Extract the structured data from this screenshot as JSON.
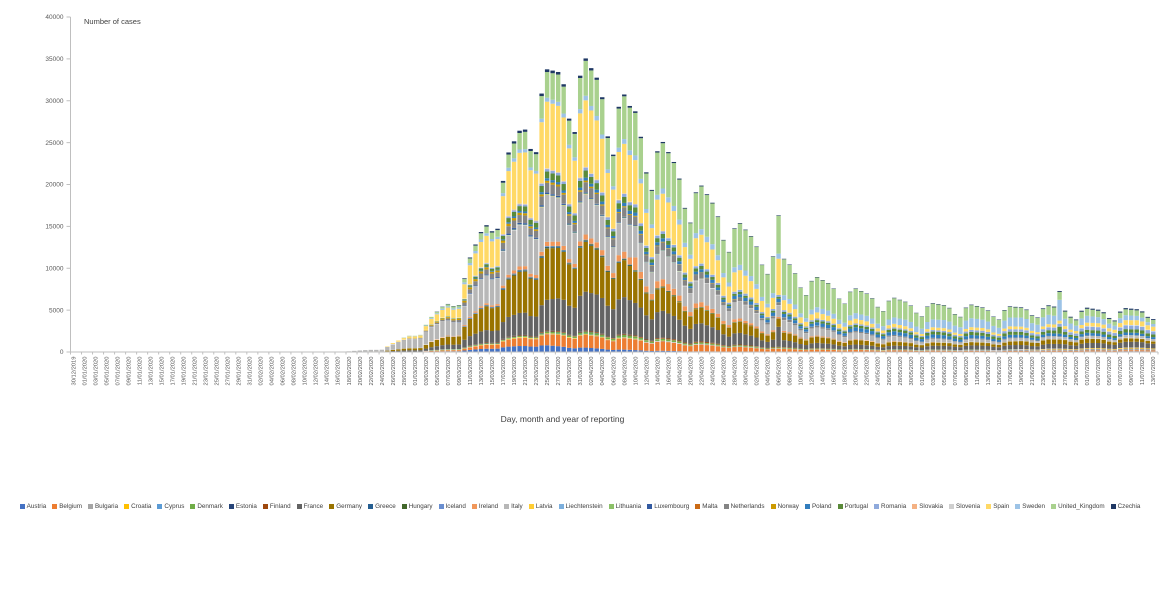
{
  "chart": {
    "y_axis_label": "Number of cases",
    "x_axis_label": "Day, month and year of reporting",
    "y_ticks": [
      0,
      5000,
      10000,
      15000,
      20000,
      25000,
      30000,
      35000,
      40000
    ],
    "axis_color": "#BFBFBF",
    "tick_text_color": "#595959"
  },
  "chart_data": {
    "type": "bar",
    "stacked": true,
    "title": "",
    "xlabel": "Day, month and year of reporting",
    "ylabel": "Number of cases",
    "ylim": [
      0,
      40000
    ],
    "grid": false,
    "legend_position": "bottom",
    "start_date": "30/12/2019",
    "end_date": "13/07/2020",
    "n_bars": 197,
    "tick_every_days": 2,
    "x_tick_labels": [
      "30/12/2019",
      "01/01/2020",
      "03/01/2020",
      "05/01/2020",
      "07/01/2020",
      "09/01/2020",
      "11/01/2020",
      "13/01/2020",
      "15/01/2020",
      "17/01/2020",
      "19/01/2020",
      "21/01/2020",
      "23/01/2020",
      "25/01/2020",
      "27/01/2020",
      "29/01/2020",
      "31/01/2020",
      "02/02/2020",
      "04/02/2020",
      "06/02/2020",
      "08/02/2020",
      "10/02/2020",
      "12/02/2020",
      "14/02/2020",
      "16/02/2020",
      "18/02/2020",
      "20/02/2020",
      "22/02/2020",
      "24/02/2020",
      "26/02/2020",
      "28/02/2020",
      "01/03/2020",
      "03/03/2020",
      "05/03/2020",
      "07/03/2020",
      "09/03/2020",
      "11/03/2020",
      "13/03/2020",
      "15/03/2020",
      "17/03/2020",
      "19/03/2020",
      "21/03/2020",
      "23/03/2020",
      "25/03/2020",
      "27/03/2020",
      "29/03/2020",
      "31/03/2020",
      "02/04/2020",
      "04/04/2020",
      "06/04/2020",
      "08/04/2020",
      "10/04/2020",
      "12/04/2020",
      "14/04/2020",
      "16/04/2020",
      "18/04/2020",
      "20/04/2020",
      "22/04/2020",
      "24/04/2020",
      "26/04/2020",
      "28/04/2020",
      "30/04/2020",
      "02/05/2020",
      "04/05/2020",
      "06/05/2020",
      "08/05/2020",
      "10/05/2020",
      "12/05/2020",
      "14/05/2020",
      "16/05/2020",
      "18/05/2020",
      "20/05/2020",
      "22/05/2020",
      "24/05/2020",
      "26/05/2020",
      "28/05/2020",
      "30/05/2020",
      "01/06/2020",
      "03/06/2020",
      "05/06/2020",
      "07/06/2020",
      "09/06/2020",
      "11/06/2020",
      "13/06/2020",
      "15/06/2020",
      "17/06/2020",
      "19/06/2020",
      "21/06/2020",
      "23/06/2020",
      "25/06/2020",
      "27/06/2020",
      "29/06/2020",
      "01/07/2020",
      "03/07/2020",
      "05/07/2020",
      "07/07/2020",
      "09/07/2020",
      "11/07/2020",
      "13/07/2020"
    ],
    "anchor_step_days": 7,
    "weekday_pattern": [
      0.8,
      1.02,
      1.1,
      1.08,
      1.06,
      1.0,
      0.86
    ],
    "spikes": [
      {
        "day": 102,
        "country": "Ireland",
        "extra": 700
      },
      {
        "day": 128,
        "country": "Spain",
        "extra": 3000
      },
      {
        "day": 128,
        "country": "France",
        "extra": 1500
      },
      {
        "day": 179,
        "country": "Sweden",
        "extra": 1500
      },
      {
        "day": 179,
        "country": "Portugal",
        "extra": 500
      }
    ],
    "series": [
      {
        "name": "Austria",
        "color": "#4472C4",
        "weekly": [
          0,
          0,
          0,
          0,
          0,
          0,
          0,
          0,
          2,
          20,
          120,
          500,
          800,
          550,
          300,
          150,
          80,
          60,
          40,
          30,
          30,
          40,
          35,
          35,
          30,
          40,
          60,
          80,
          90
        ]
      },
      {
        "name": "Belgium",
        "color": "#ED7D31",
        "weekly": [
          0,
          0,
          0,
          0,
          0,
          0,
          0,
          0,
          1,
          30,
          150,
          600,
          1100,
          1400,
          1300,
          1100,
          800,
          550,
          350,
          250,
          200,
          150,
          120,
          100,
          80,
          90,
          90,
          100,
          130
        ]
      },
      {
        "name": "Bulgaria",
        "color": "#A5A5A5",
        "weekly": [
          0,
          0,
          0,
          0,
          0,
          0,
          0,
          0,
          0,
          2,
          10,
          30,
          40,
          40,
          40,
          50,
          50,
          40,
          40,
          30,
          30,
          30,
          50,
          80,
          100,
          140,
          160,
          180,
          200
        ]
      },
      {
        "name": "Croatia",
        "color": "#FFC000",
        "weekly": [
          0,
          0,
          0,
          0,
          0,
          0,
          0,
          0,
          1,
          3,
          10,
          50,
          80,
          70,
          50,
          30,
          20,
          15,
          5,
          3,
          2,
          1,
          1,
          2,
          10,
          40,
          60,
          70,
          80
        ]
      },
      {
        "name": "Cyprus",
        "color": "#5B9BD5",
        "weekly": [
          0,
          0,
          0,
          0,
          0,
          0,
          0,
          0,
          0,
          1,
          5,
          20,
          30,
          35,
          30,
          20,
          15,
          10,
          5,
          3,
          2,
          1,
          1,
          1,
          1,
          1,
          3,
          5,
          5
        ]
      },
      {
        "name": "Denmark",
        "color": "#70AD47",
        "weekly": [
          0,
          0,
          0,
          0,
          0,
          0,
          0,
          1,
          3,
          15,
          80,
          100,
          120,
          200,
          250,
          200,
          150,
          120,
          100,
          80,
          60,
          50,
          40,
          35,
          30,
          25,
          20,
          15,
          15
        ]
      },
      {
        "name": "Estonia",
        "color": "#264478",
        "weekly": [
          0,
          0,
          0,
          0,
          0,
          0,
          0,
          0,
          1,
          5,
          30,
          50,
          40,
          35,
          30,
          25,
          15,
          10,
          5,
          3,
          2,
          2,
          2,
          2,
          2,
          2,
          3,
          3,
          3
        ]
      },
      {
        "name": "Finland",
        "color": "#9E480E",
        "weekly": [
          0,
          0,
          0,
          0,
          0,
          0,
          0,
          0,
          1,
          5,
          30,
          60,
          80,
          80,
          90,
          100,
          120,
          90,
          60,
          40,
          30,
          25,
          20,
          15,
          10,
          8,
          5,
          5,
          5
        ]
      },
      {
        "name": "France",
        "color": "#636363",
        "weekly": [
          0,
          0,
          0,
          0,
          0,
          1,
          2,
          5,
          30,
          200,
          700,
          1800,
          3000,
          4200,
          4300,
          3200,
          2200,
          1400,
          900,
          600,
          500,
          400,
          400,
          450,
          450,
          500,
          550,
          600,
          700
        ]
      },
      {
        "name": "Germany",
        "color": "#997300",
        "weekly": [
          0,
          0,
          0,
          0,
          1,
          2,
          3,
          10,
          50,
          300,
          1200,
          3500,
          5500,
          5800,
          4500,
          2800,
          1800,
          1300,
          900,
          700,
          500,
          450,
          350,
          350,
          350,
          500,
          500,
          400,
          350
        ]
      },
      {
        "name": "Greece",
        "color": "#255E91",
        "weekly": [
          0,
          0,
          0,
          0,
          0,
          0,
          0,
          0,
          2,
          10,
          30,
          80,
          100,
          80,
          60,
          40,
          25,
          15,
          10,
          10,
          10,
          10,
          10,
          10,
          10,
          10,
          15,
          25,
          30
        ]
      },
      {
        "name": "Hungary",
        "color": "#43682B",
        "weekly": [
          0,
          0,
          0,
          0,
          0,
          0,
          0,
          0,
          1,
          3,
          15,
          40,
          60,
          80,
          90,
          90,
          80,
          60,
          40,
          35,
          30,
          25,
          20,
          15,
          10,
          8,
          8,
          10,
          10
        ]
      },
      {
        "name": "Iceland",
        "color": "#698ED0",
        "weekly": [
          0,
          0,
          0,
          0,
          0,
          0,
          0,
          0,
          1,
          10,
          40,
          70,
          90,
          70,
          40,
          20,
          8,
          3,
          2,
          1,
          1,
          1,
          1,
          1,
          1,
          1,
          1,
          2,
          2
        ]
      },
      {
        "name": "Ireland",
        "color": "#F1975A",
        "weekly": [
          0,
          0,
          0,
          0,
          0,
          0,
          0,
          0,
          1,
          15,
          80,
          250,
          450,
          500,
          700,
          850,
          600,
          350,
          200,
          120,
          80,
          50,
          30,
          20,
          15,
          10,
          10,
          15,
          20
        ]
      },
      {
        "name": "Italy",
        "color": "#B7B7B7",
        "weekly": [
          0,
          0,
          0,
          0,
          0,
          1,
          2,
          20,
          250,
          1400,
          1900,
          3800,
          5300,
          4600,
          3800,
          3200,
          2700,
          2000,
          1400,
          900,
          750,
          600,
          350,
          280,
          300,
          250,
          220,
          200,
          200
        ]
      },
      {
        "name": "Latvia",
        "color": "#FFCD33",
        "weekly": [
          0,
          0,
          0,
          0,
          0,
          0,
          0,
          0,
          1,
          3,
          10,
          25,
          30,
          30,
          25,
          20,
          15,
          10,
          8,
          5,
          3,
          2,
          2,
          2,
          2,
          2,
          2,
          2,
          2
        ]
      },
      {
        "name": "Liechtenstein",
        "color": "#7CAFDD",
        "weekly": [
          0,
          0,
          0,
          0,
          0,
          0,
          0,
          0,
          0,
          1,
          5,
          15,
          10,
          5,
          2,
          1,
          0,
          0,
          0,
          0,
          0,
          0,
          0,
          0,
          0,
          0,
          0,
          0,
          0
        ]
      },
      {
        "name": "Lithuania",
        "color": "#8CC168",
        "weekly": [
          0,
          0,
          0,
          0,
          0,
          0,
          0,
          0,
          0,
          3,
          15,
          40,
          50,
          60,
          50,
          40,
          30,
          20,
          15,
          10,
          8,
          6,
          5,
          5,
          5,
          5,
          5,
          5,
          8
        ]
      },
      {
        "name": "Luxembourg",
        "color": "#335AA1",
        "weekly": [
          0,
          0,
          0,
          0,
          0,
          0,
          0,
          0,
          0,
          5,
          40,
          150,
          180,
          120,
          80,
          40,
          20,
          10,
          5,
          3,
          2,
          2,
          2,
          3,
          5,
          10,
          15,
          20,
          20
        ]
      },
      {
        "name": "Malta",
        "color": "#CB6A15",
        "weekly": [
          0,
          0,
          0,
          0,
          0,
          0,
          0,
          0,
          0,
          2,
          5,
          15,
          15,
          15,
          10,
          8,
          5,
          3,
          2,
          1,
          1,
          1,
          1,
          1,
          1,
          1,
          1,
          2,
          3
        ]
      },
      {
        "name": "Netherlands",
        "color": "#848484",
        "weekly": [
          0,
          0,
          0,
          0,
          0,
          0,
          0,
          1,
          5,
          60,
          300,
          700,
          1000,
          1100,
          1100,
          900,
          700,
          400,
          300,
          200,
          150,
          120,
          100,
          90,
          80,
          70,
          60,
          50,
          60
        ]
      },
      {
        "name": "Norway",
        "color": "#CC9A00",
        "weekly": [
          0,
          0,
          0,
          0,
          0,
          0,
          0,
          1,
          5,
          40,
          200,
          280,
          250,
          200,
          120,
          80,
          50,
          40,
          30,
          20,
          15,
          10,
          10,
          10,
          10,
          10,
          10,
          10,
          10
        ]
      },
      {
        "name": "Poland",
        "color": "#327DBD",
        "weekly": [
          0,
          0,
          0,
          0,
          0,
          0,
          0,
          0,
          1,
          5,
          30,
          120,
          250,
          300,
          350,
          380,
          350,
          350,
          400,
          350,
          400,
          400,
          380,
          350,
          300,
          300,
          300,
          280,
          280
        ]
      },
      {
        "name": "Portugal",
        "color": "#5A8A39",
        "weekly": [
          0,
          0,
          0,
          0,
          0,
          0,
          0,
          0,
          1,
          10,
          80,
          350,
          700,
          800,
          700,
          500,
          400,
          250,
          220,
          230,
          250,
          280,
          300,
          330,
          350,
          330,
          300,
          350,
          400
        ]
      },
      {
        "name": "Romania",
        "color": "#8FAADC",
        "weekly": [
          0,
          0,
          0,
          0,
          0,
          0,
          0,
          0,
          1,
          5,
          30,
          120,
          250,
          300,
          350,
          300,
          250,
          250,
          200,
          180,
          160,
          150,
          150,
          200,
          250,
          300,
          350,
          400,
          450
        ]
      },
      {
        "name": "Slovakia",
        "color": "#F4B183",
        "weekly": [
          0,
          0,
          0,
          0,
          0,
          0,
          0,
          0,
          0,
          2,
          10,
          30,
          40,
          40,
          40,
          30,
          20,
          10,
          5,
          3,
          2,
          1,
          1,
          2,
          5,
          10,
          20,
          25,
          30
        ]
      },
      {
        "name": "Slovenia",
        "color": "#CFCFCF",
        "weekly": [
          0,
          0,
          0,
          0,
          0,
          0,
          0,
          0,
          1,
          5,
          20,
          50,
          60,
          40,
          30,
          20,
          10,
          5,
          2,
          1,
          1,
          1,
          1,
          2,
          3,
          10,
          15,
          20,
          25
        ]
      },
      {
        "name": "Spain",
        "color": "#FFD966",
        "weekly": [
          0,
          0,
          0,
          0,
          0,
          0,
          0,
          1,
          20,
          300,
          1300,
          4000,
          7000,
          7800,
          5800,
          4300,
          3400,
          2400,
          1400,
          700,
          550,
          400,
          300,
          300,
          300,
          300,
          350,
          450,
          650
        ]
      },
      {
        "name": "Sweden",
        "color": "#9DC3E6",
        "weekly": [
          0,
          0,
          0,
          0,
          0,
          0,
          0,
          1,
          5,
          50,
          200,
          350,
          400,
          500,
          500,
          550,
          600,
          600,
          550,
          550,
          600,
          650,
          800,
          1000,
          900,
          1100,
          800,
          600,
          400
        ]
      },
      {
        "name": "United_Kingdom",
        "color": "#A9D18E",
        "weekly": [
          0,
          0,
          0,
          0,
          0,
          0,
          0,
          1,
          5,
          50,
          300,
          1000,
          2500,
          3500,
          4500,
          5000,
          4700,
          4500,
          4400,
          3400,
          2800,
          2200,
          1800,
          1500,
          1200,
          1000,
          800,
          650,
          600
        ]
      },
      {
        "name": "Czechia",
        "color": "#1F3864",
        "weekly": [
          0,
          0,
          0,
          0,
          0,
          0,
          0,
          0,
          1,
          10,
          60,
          200,
          300,
          280,
          220,
          150,
          100,
          70,
          60,
          50,
          50,
          50,
          50,
          60,
          60,
          80,
          120,
          130,
          130
        ]
      }
    ]
  }
}
